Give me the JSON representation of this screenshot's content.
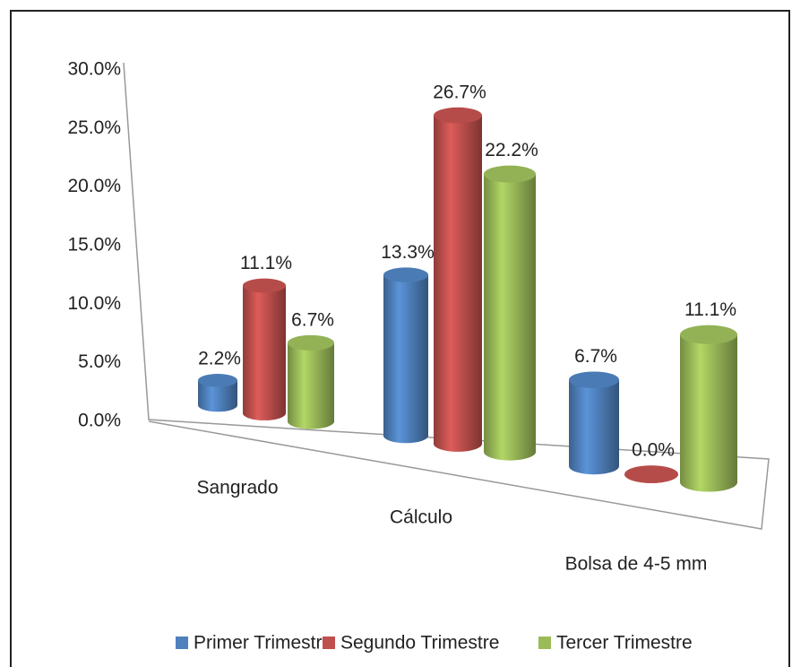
{
  "chart_data": {
    "type": "bar3d",
    "categories": [
      "Sangrado",
      "Cálculo",
      "Bolsa de 4-5 mm"
    ],
    "series": [
      {
        "name": "Primer Trimestre",
        "color": "#4f81bd",
        "values": [
          2.2,
          13.3,
          6.7
        ],
        "value_labels": [
          "2.2%",
          "13.3%",
          "6.7%"
        ]
      },
      {
        "name": "Segundo Trimestre",
        "color": "#c0504d",
        "values": [
          11.1,
          26.7,
          0.0
        ],
        "value_labels": [
          "11.1%",
          "26.7%",
          "0.0%"
        ]
      },
      {
        "name": "Tercer Trimestre",
        "color": "#9bbb59",
        "values": [
          6.7,
          22.2,
          11.1
        ],
        "value_labels": [
          "6.7%",
          "22.2%",
          "11.1%"
        ]
      }
    ],
    "ylim": [
      0,
      30
    ],
    "yticks": [
      {
        "value": 0,
        "label": "0.0%"
      },
      {
        "value": 5,
        "label": "5.0%"
      },
      {
        "value": 10,
        "label": "10.0%"
      },
      {
        "value": 15,
        "label": "15.0%"
      },
      {
        "value": 20,
        "label": "20.0%"
      },
      {
        "value": 25,
        "label": "25.0%"
      },
      {
        "value": 30,
        "label": "30.0%"
      }
    ],
    "legend": "bottom"
  }
}
